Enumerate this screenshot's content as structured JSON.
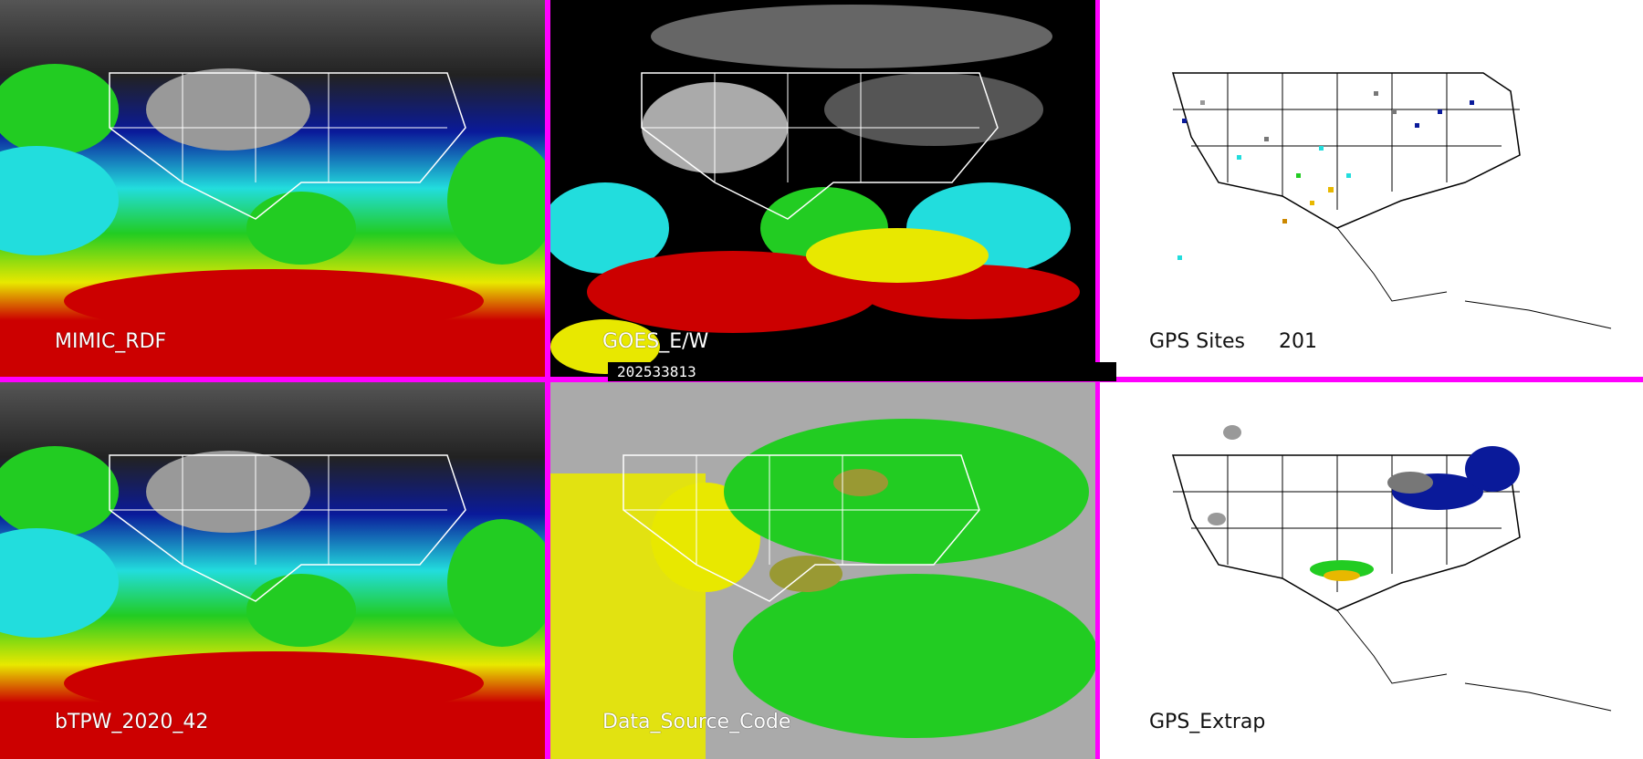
{
  "panels": {
    "mimic": {
      "label": "MIMIC_RDF"
    },
    "goes": {
      "label": "GOES_E/W"
    },
    "gps_sites": {
      "label": "GPS Sites",
      "count": "201"
    },
    "btpw": {
      "label": "bTPW_2020_42"
    },
    "source": {
      "label": "Data_Source_Code"
    },
    "gps_extrap": {
      "label": "GPS_Extrap"
    }
  },
  "timestamp": "202533813",
  "colors": {
    "divider": "#ff00ff",
    "moist_red": "#cc0000",
    "yellow": "#e8e800",
    "green": "#22cc22",
    "cyan": "#22dddd",
    "blue": "#0a1a9a",
    "gray": "#aaaaaa"
  }
}
